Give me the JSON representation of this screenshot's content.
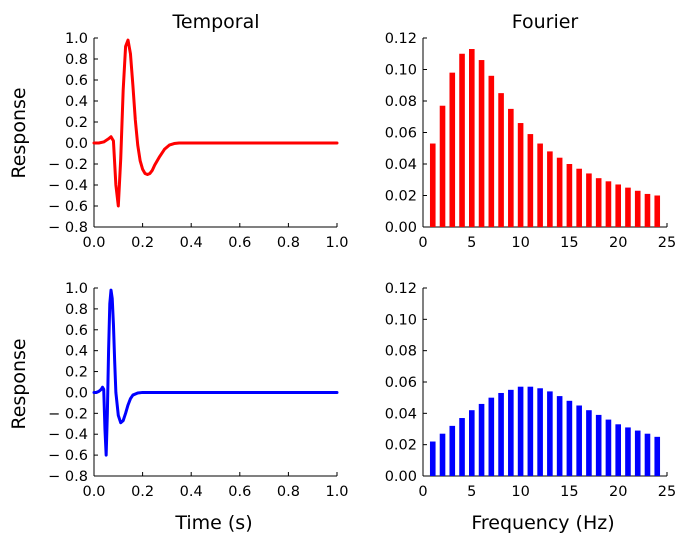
{
  "figure": {
    "col_titles": [
      "Temporal",
      "Fourier"
    ],
    "row_ylabel": "Response",
    "xlabel_time": "Time (s)",
    "xlabel_freq": "Frequency (Hz)"
  },
  "colors": {
    "red": "#ff0000",
    "blue": "#0000ff"
  },
  "chart_data": [
    {
      "id": "temporal-red",
      "type": "line",
      "title": "Temporal",
      "xlabel": "",
      "ylabel": "Response",
      "xlim": [
        0,
        1
      ],
      "ylim": [
        -0.8,
        1.0
      ],
      "xticks": [
        0.0,
        0.2,
        0.4,
        0.6,
        0.8,
        1.0
      ],
      "xtick_labels": [
        "0.0",
        "0.2",
        "0.4",
        "0.6",
        "0.8",
        "1.0"
      ],
      "yticks": [
        -0.8,
        -0.6,
        -0.4,
        -0.2,
        0.0,
        0.2,
        0.4,
        0.6,
        0.8,
        1.0
      ],
      "ytick_labels": [
        "− 0.8",
        "− 0.6",
        "− 0.4",
        "− 0.2",
        "0.0",
        "0.2",
        "0.4",
        "0.6",
        "0.8",
        "1.0"
      ],
      "grid": false,
      "color": "#ff0000",
      "x": [
        0,
        0.02,
        0.04,
        0.06,
        0.07,
        0.08,
        0.09,
        0.1,
        0.11,
        0.12,
        0.13,
        0.14,
        0.15,
        0.16,
        0.17,
        0.18,
        0.19,
        0.2,
        0.21,
        0.22,
        0.23,
        0.24,
        0.25,
        0.27,
        0.29,
        0.31,
        0.33,
        0.35,
        0.4,
        0.5,
        0.6,
        0.7,
        0.8,
        0.9,
        1.0
      ],
      "y": [
        0,
        0,
        0.01,
        0.04,
        0.06,
        0.02,
        -0.4,
        -0.6,
        -0.15,
        0.5,
        0.92,
        0.98,
        0.85,
        0.55,
        0.22,
        -0.02,
        -0.17,
        -0.25,
        -0.29,
        -0.3,
        -0.29,
        -0.26,
        -0.21,
        -0.13,
        -0.06,
        -0.02,
        -0.005,
        0,
        0,
        0,
        0,
        0,
        0,
        0,
        0
      ]
    },
    {
      "id": "fourier-red",
      "type": "bar",
      "title": "Fourier",
      "xlabel": "",
      "ylabel": "",
      "xlim": [
        0,
        25
      ],
      "ylim": [
        0,
        0.12
      ],
      "xticks": [
        0,
        5,
        10,
        15,
        20,
        25
      ],
      "xtick_labels": [
        "0",
        "5",
        "10",
        "15",
        "20",
        "25"
      ],
      "yticks": [
        0,
        0.02,
        0.04,
        0.06,
        0.08,
        0.1,
        0.12
      ],
      "ytick_labels": [
        "0.00",
        "0.02",
        "0.04",
        "0.06",
        "0.08",
        "0.10",
        "0.12"
      ],
      "grid": false,
      "color": "#ff0000",
      "x": [
        1,
        2,
        3,
        4,
        5,
        6,
        7,
        8,
        9,
        10,
        11,
        12,
        13,
        14,
        15,
        16,
        17,
        18,
        19,
        20,
        21,
        22,
        23,
        24
      ],
      "values": [
        0.053,
        0.077,
        0.098,
        0.11,
        0.113,
        0.106,
        0.096,
        0.085,
        0.075,
        0.066,
        0.059,
        0.053,
        0.048,
        0.044,
        0.04,
        0.037,
        0.034,
        0.031,
        0.029,
        0.027,
        0.025,
        0.023,
        0.021,
        0.02
      ]
    },
    {
      "id": "temporal-blue",
      "type": "line",
      "title": "",
      "xlabel": "Time (s)",
      "ylabel": "Response",
      "xlim": [
        0,
        1
      ],
      "ylim": [
        -0.8,
        1.0
      ],
      "xticks": [
        0.0,
        0.2,
        0.4,
        0.6,
        0.8,
        1.0
      ],
      "xtick_labels": [
        "0.0",
        "0.2",
        "0.4",
        "0.6",
        "0.8",
        "1.0"
      ],
      "yticks": [
        -0.8,
        -0.6,
        -0.4,
        -0.2,
        0.0,
        0.2,
        0.4,
        0.6,
        0.8,
        1.0
      ],
      "ytick_labels": [
        "− 0.8",
        "− 0.6",
        "− 0.4",
        "− 0.2",
        "0.0",
        "0.2",
        "0.4",
        "0.6",
        "0.8",
        "1.0"
      ],
      "grid": false,
      "color": "#0000ff",
      "x": [
        0,
        0.01,
        0.02,
        0.03,
        0.035,
        0.04,
        0.045,
        0.05,
        0.055,
        0.06,
        0.065,
        0.07,
        0.075,
        0.08,
        0.085,
        0.09,
        0.1,
        0.11,
        0.12,
        0.13,
        0.14,
        0.15,
        0.16,
        0.18,
        0.2,
        0.3,
        0.5,
        0.7,
        0.9,
        1.0
      ],
      "y": [
        0,
        0,
        0.01,
        0.03,
        0.05,
        0.03,
        -0.35,
        -0.6,
        -0.2,
        0.4,
        0.85,
        0.98,
        0.9,
        0.65,
        0.3,
        0.0,
        -0.22,
        -0.29,
        -0.27,
        -0.2,
        -0.12,
        -0.06,
        -0.025,
        -0.005,
        0,
        0,
        0,
        0,
        0,
        0
      ]
    },
    {
      "id": "fourier-blue",
      "type": "bar",
      "title": "",
      "xlabel": "Frequency (Hz)",
      "ylabel": "",
      "xlim": [
        0,
        25
      ],
      "ylim": [
        0,
        0.12
      ],
      "xticks": [
        0,
        5,
        10,
        15,
        20,
        25
      ],
      "xtick_labels": [
        "0",
        "5",
        "10",
        "15",
        "20",
        "25"
      ],
      "yticks": [
        0,
        0.02,
        0.04,
        0.06,
        0.08,
        0.1,
        0.12
      ],
      "ytick_labels": [
        "0.00",
        "0.02",
        "0.04",
        "0.06",
        "0.08",
        "0.10",
        "0.12"
      ],
      "grid": false,
      "color": "#0000ff",
      "x": [
        1,
        2,
        3,
        4,
        5,
        6,
        7,
        8,
        9,
        10,
        11,
        12,
        13,
        14,
        15,
        16,
        17,
        18,
        19,
        20,
        21,
        22,
        23,
        24
      ],
      "values": [
        0.022,
        0.027,
        0.032,
        0.037,
        0.042,
        0.046,
        0.05,
        0.053,
        0.055,
        0.057,
        0.057,
        0.056,
        0.054,
        0.051,
        0.048,
        0.045,
        0.042,
        0.039,
        0.036,
        0.033,
        0.031,
        0.029,
        0.027,
        0.025
      ]
    }
  ]
}
